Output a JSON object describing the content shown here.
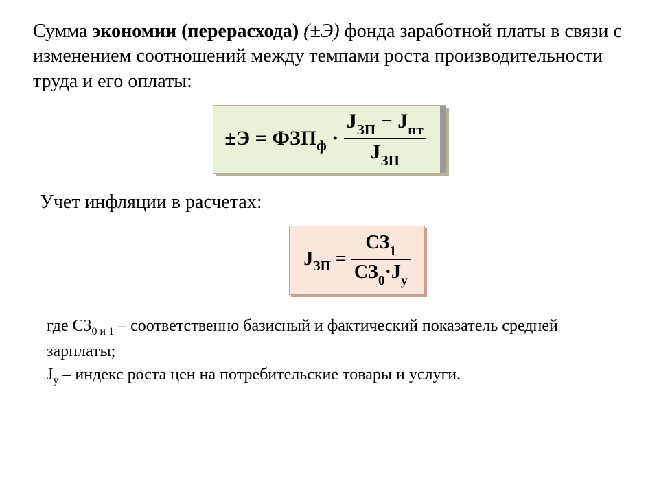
{
  "colors": {
    "page_bg": "#ffffff",
    "text": "#000000",
    "box1_bg": "#e9f2d7",
    "box1_border": "#b7b297",
    "box1_shadow": "#b7b297",
    "box1_stripe": "#9b9b9b",
    "box2_bg": "#fbe6de",
    "box2_border": "#c9a08e",
    "box2_shadow": "#c9a08e"
  },
  "typography": {
    "body_font": "Times New Roman",
    "para_fontsize_pt": 21,
    "formula_fontsize_pt": 22,
    "defs_fontsize_pt": 18
  },
  "text": {
    "p1_a": "Сумма ",
    "p1_b": "экономии (перерасхода) ",
    "p1_c": "(±Э)",
    "p1_d": " фонда заработной платы в связи с изменением соотношений между темпами роста производительности труда и его оплаты:",
    "p2": "Учет инфляции в расчетах:",
    "def1_a": "где СЗ",
    "def1_sub": "0 и 1",
    "def1_b": " – соответственно базисный и фактический показатель средней зарплаты;",
    "def2_a": "J",
    "def2_sub": "у",
    "def2_b": " – индекс роста цен на потребительские товары и услуги."
  },
  "formula1": {
    "lhs_pm": "±",
    "lhs_sym": "Э",
    "eq": "=",
    "rhs_a": "ФЗП",
    "rhs_a_sub": "ф",
    "dot": "·",
    "num_a": "J",
    "num_a_sub": "ЗП",
    "num_minus": "−",
    "num_b": "J",
    "num_b_sub": "пт",
    "den_a": "J",
    "den_a_sub": "ЗП"
  },
  "formula2": {
    "lhs": "J",
    "lhs_sub": "ЗП",
    "eq": "=",
    "num": "СЗ",
    "num_sub": "1",
    "den_a": "СЗ",
    "den_a_sub": "0",
    "dot": "·",
    "den_b": "J",
    "den_b_sub": "у"
  }
}
